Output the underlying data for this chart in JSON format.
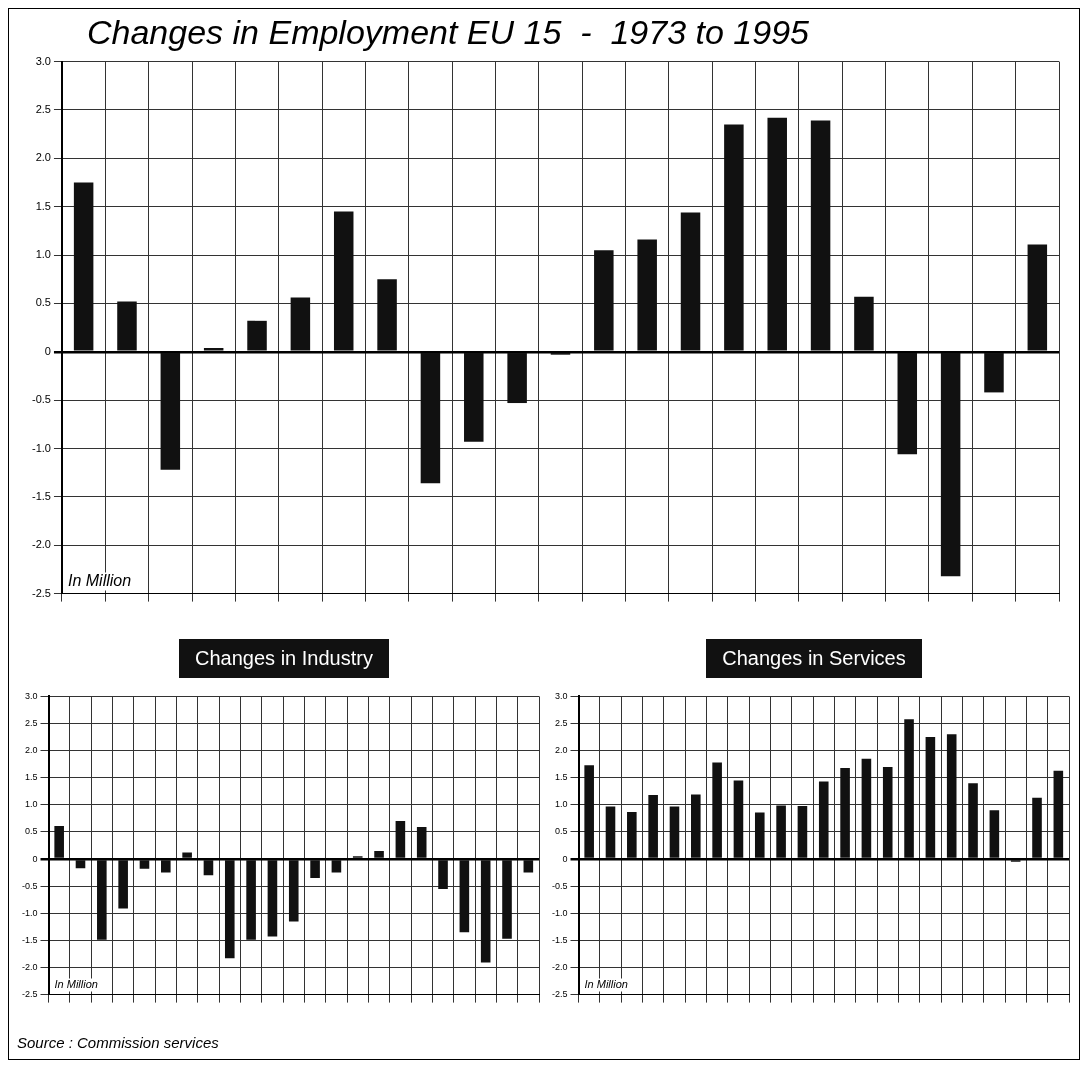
{
  "chart_data": [
    {
      "type": "bar",
      "title": "Changes in Employment EU 15  -  1973 to 1995",
      "categories": [
        null,
        null,
        null,
        null,
        null,
        null,
        null,
        null,
        null,
        null,
        null,
        null,
        null,
        null,
        null,
        null,
        null,
        null,
        null,
        null,
        null,
        null,
        null
      ],
      "values": [
        1.75,
        0.52,
        -1.22,
        0.04,
        0.32,
        0.56,
        1.45,
        0.75,
        -1.36,
        -0.93,
        -0.53,
        -0.03,
        1.05,
        1.16,
        1.44,
        2.35,
        2.42,
        2.39,
        0.57,
        -1.06,
        -2.32,
        -0.42,
        1.11
      ],
      "color": "#111111",
      "ylim": [
        -2.5,
        3.0
      ],
      "yticks": [
        {
          "value": -2.5,
          "label": "-2.5"
        },
        {
          "value": -2,
          "label": "-2.0"
        },
        {
          "value": -1.5,
          "label": "-1.5"
        },
        {
          "value": -1,
          "label": "-1.0"
        },
        {
          "value": -0.5,
          "label": "-0.5"
        },
        {
          "value": 0,
          "label": "0"
        },
        {
          "value": 0.5,
          "label": "0.5"
        },
        {
          "value": 1,
          "label": "1.0"
        },
        {
          "value": 1.5,
          "label": "1.5"
        },
        {
          "value": 2,
          "label": "2.0"
        },
        {
          "value": 2.5,
          "label": "2.5"
        },
        {
          "value": 3,
          "label": "3.0"
        }
      ],
      "grid": true,
      "annotations": [
        "In Million",
        "Source : Commission services"
      ]
    },
    {
      "type": "bar",
      "title": "Changes in Industry",
      "categories": [
        null,
        null,
        null,
        null,
        null,
        null,
        null,
        null,
        null,
        null,
        null,
        null,
        null,
        null,
        null,
        null,
        null,
        null,
        null,
        null,
        null,
        null,
        null
      ],
      "values": [
        0.61,
        -0.17,
        -1.49,
        -0.91,
        -0.18,
        -0.25,
        0.12,
        -0.3,
        -1.83,
        -1.49,
        -1.43,
        -1.15,
        -0.35,
        -0.25,
        0.05,
        0.15,
        0.7,
        0.59,
        -0.55,
        -1.35,
        -1.91,
        -1.47,
        -0.25
      ],
      "color": "#111111",
      "ylim": [
        -2.5,
        3.0
      ],
      "yticks": [
        {
          "value": -2.5,
          "label": "-2.5"
        },
        {
          "value": -2,
          "label": "-2.0"
        },
        {
          "value": -1.5,
          "label": "-1.5"
        },
        {
          "value": -1,
          "label": "-1.0"
        },
        {
          "value": -0.5,
          "label": "-0.5"
        },
        {
          "value": 0,
          "label": "0"
        },
        {
          "value": 0.5,
          "label": "0.5"
        },
        {
          "value": 1,
          "label": "1.0"
        },
        {
          "value": 1.5,
          "label": "1.5"
        },
        {
          "value": 2,
          "label": "2.0"
        },
        {
          "value": 2.5,
          "label": "2.5"
        },
        {
          "value": 3,
          "label": "3.0"
        }
      ],
      "grid": true,
      "annotations": [
        "In Million"
      ]
    },
    {
      "type": "bar",
      "title": "Changes in Services",
      "categories": [
        null,
        null,
        null,
        null,
        null,
        null,
        null,
        null,
        null,
        null,
        null,
        null,
        null,
        null,
        null,
        null,
        null,
        null,
        null,
        null,
        null,
        null,
        null
      ],
      "values": [
        1.73,
        0.97,
        0.87,
        1.18,
        0.97,
        1.19,
        1.78,
        1.45,
        0.86,
        0.99,
        0.98,
        1.43,
        1.68,
        1.85,
        1.7,
        2.58,
        2.25,
        2.3,
        1.4,
        0.9,
        -0.05,
        1.13,
        1.63
      ],
      "color": "#111111",
      "ylim": [
        -2.5,
        3.0
      ],
      "yticks": [
        {
          "value": -2.5,
          "label": "-2.5"
        },
        {
          "value": -2,
          "label": "-2.0"
        },
        {
          "value": -1.5,
          "label": "-1.5"
        },
        {
          "value": -1,
          "label": "-1.0"
        },
        {
          "value": -0.5,
          "label": "-0.5"
        },
        {
          "value": 0,
          "label": "0"
        },
        {
          "value": 0.5,
          "label": "0.5"
        },
        {
          "value": 1,
          "label": "1.0"
        },
        {
          "value": 1.5,
          "label": "1.5"
        },
        {
          "value": 2,
          "label": "2.0"
        },
        {
          "value": 2.5,
          "label": "2.5"
        },
        {
          "value": 3,
          "label": "3.0"
        }
      ],
      "grid": true,
      "annotations": [
        "In Million"
      ]
    }
  ]
}
